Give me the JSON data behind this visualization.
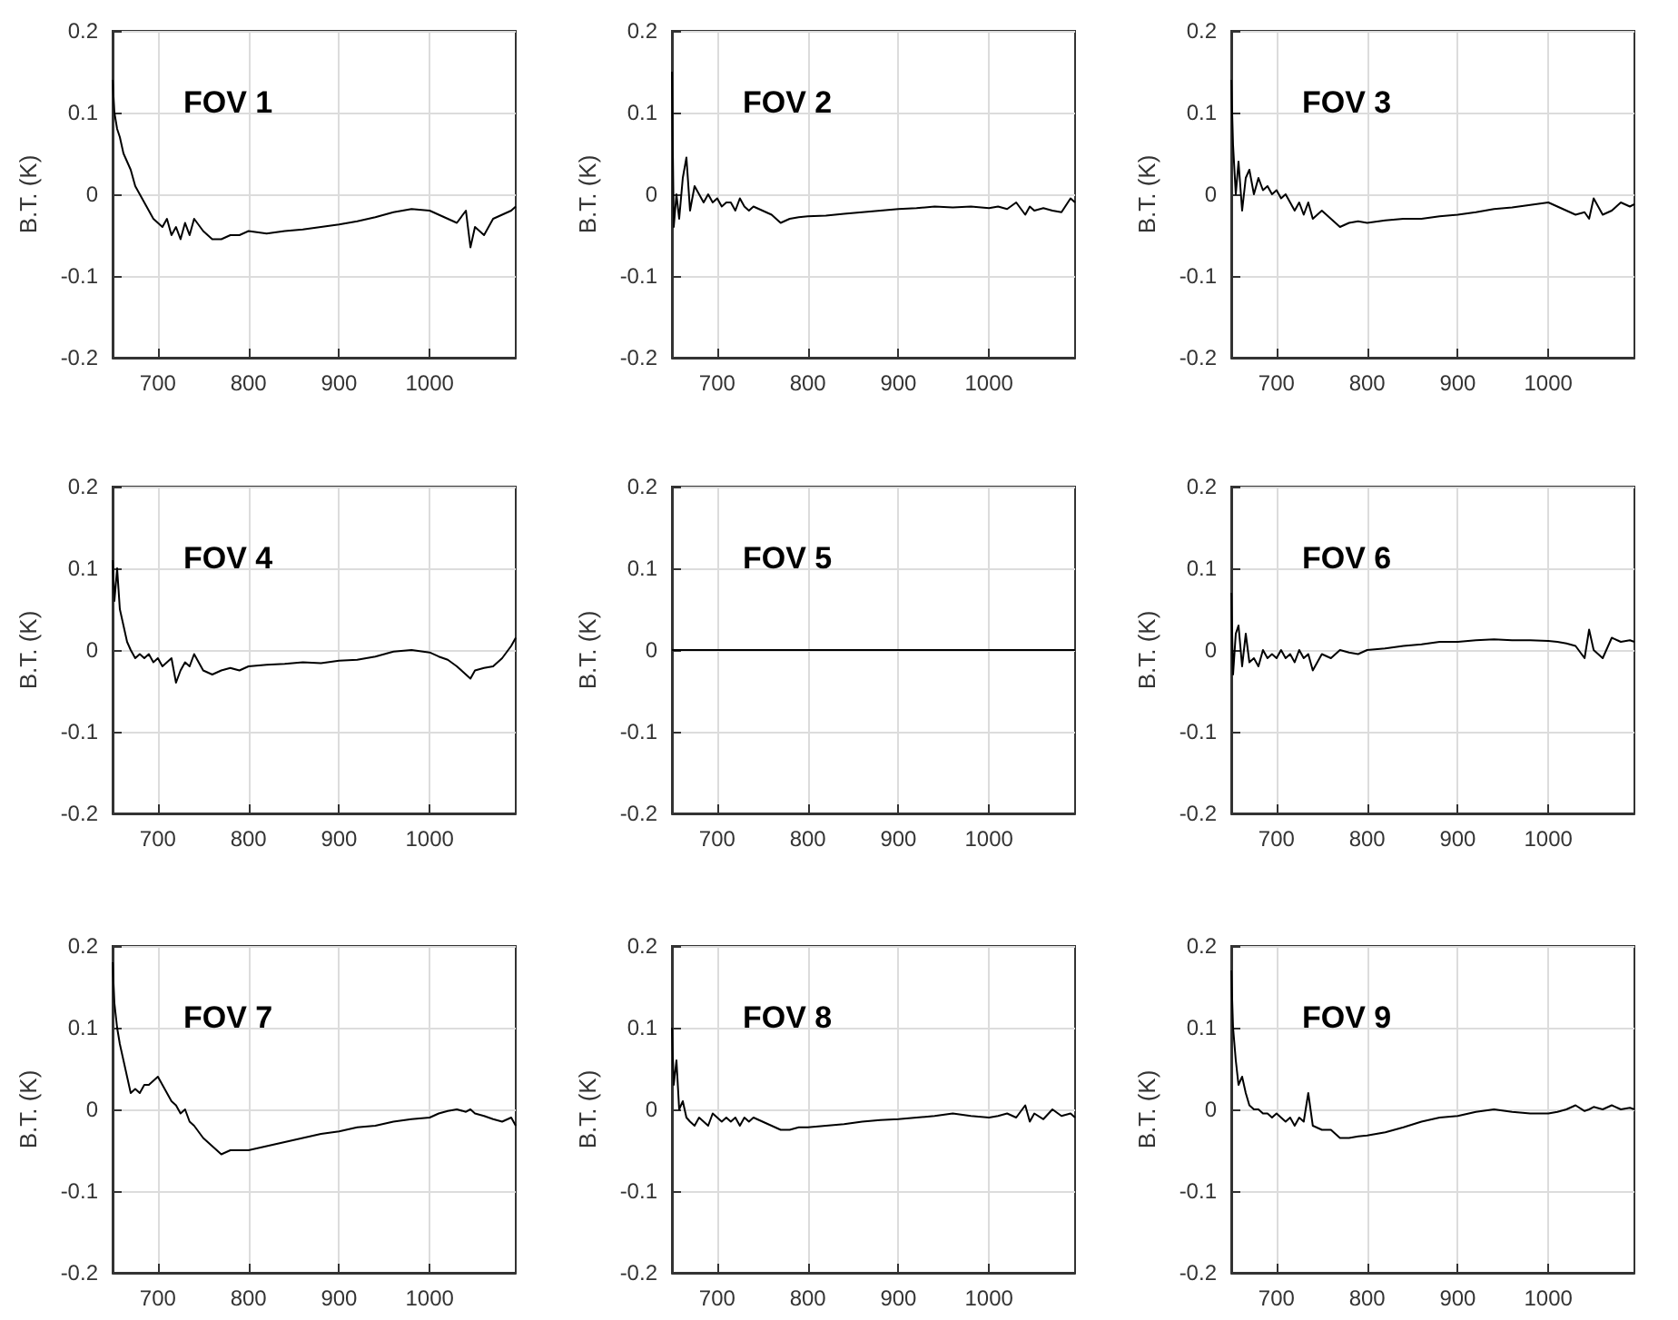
{
  "chart_data": [
    {
      "type": "line",
      "title": "FOV 1",
      "ylabel": "B.T. (K)",
      "color": "#000000",
      "xlim": [
        650,
        1095
      ],
      "ylim": [
        -0.2,
        0.2
      ],
      "xticks": [
        700,
        800,
        900,
        1000
      ],
      "yticks": [
        -0.2,
        -0.1,
        0,
        0.1,
        0.2
      ],
      "grid": true,
      "x": [
        650,
        652,
        655,
        658,
        662,
        666,
        670,
        675,
        680,
        685,
        690,
        695,
        700,
        705,
        710,
        715,
        720,
        725,
        730,
        735,
        740,
        750,
        760,
        770,
        780,
        790,
        800,
        820,
        840,
        860,
        880,
        900,
        920,
        940,
        960,
        980,
        1000,
        1010,
        1020,
        1030,
        1040,
        1045,
        1050,
        1060,
        1070,
        1080,
        1090,
        1095
      ],
      "values": [
        0.14,
        0.1,
        0.08,
        0.07,
        0.05,
        0.04,
        0.03,
        0.01,
        0.0,
        -0.01,
        -0.02,
        -0.03,
        -0.035,
        -0.04,
        -0.03,
        -0.05,
        -0.04,
        -0.055,
        -0.035,
        -0.05,
        -0.03,
        -0.045,
        -0.055,
        -0.055,
        -0.05,
        -0.05,
        -0.045,
        -0.048,
        -0.045,
        -0.043,
        -0.04,
        -0.037,
        -0.033,
        -0.028,
        -0.022,
        -0.018,
        -0.02,
        -0.025,
        -0.03,
        -0.035,
        -0.02,
        -0.065,
        -0.04,
        -0.05,
        -0.03,
        -0.025,
        -0.02,
        -0.015
      ]
    },
    {
      "type": "line",
      "title": "FOV 2",
      "ylabel": "B.T. (K)",
      "color": "#000000",
      "xlim": [
        650,
        1095
      ],
      "ylim": [
        -0.2,
        0.2
      ],
      "xticks": [
        700,
        800,
        900,
        1000
      ],
      "yticks": [
        -0.2,
        -0.1,
        0,
        0.1,
        0.2
      ],
      "grid": true,
      "x": [
        650,
        652,
        655,
        658,
        662,
        666,
        670,
        675,
        680,
        685,
        690,
        695,
        700,
        705,
        710,
        715,
        720,
        725,
        730,
        735,
        740,
        750,
        760,
        770,
        780,
        790,
        800,
        820,
        840,
        860,
        880,
        900,
        920,
        940,
        960,
        980,
        1000,
        1010,
        1020,
        1030,
        1040,
        1045,
        1050,
        1060,
        1070,
        1080,
        1090,
        1095
      ],
      "values": [
        0.15,
        -0.04,
        0.0,
        -0.03,
        0.02,
        0.045,
        -0.02,
        0.01,
        0.0,
        -0.01,
        0.0,
        -0.01,
        -0.005,
        -0.015,
        -0.01,
        -0.01,
        -0.02,
        -0.005,
        -0.015,
        -0.02,
        -0.015,
        -0.02,
        -0.025,
        -0.035,
        -0.03,
        -0.028,
        -0.027,
        -0.026,
        -0.024,
        -0.022,
        -0.02,
        -0.018,
        -0.017,
        -0.015,
        -0.016,
        -0.015,
        -0.017,
        -0.015,
        -0.018,
        -0.01,
        -0.025,
        -0.015,
        -0.02,
        -0.017,
        -0.02,
        -0.022,
        -0.005,
        -0.01
      ]
    },
    {
      "type": "line",
      "title": "FOV 3",
      "ylabel": "B.T. (K)",
      "color": "#000000",
      "xlim": [
        650,
        1095
      ],
      "ylim": [
        -0.2,
        0.2
      ],
      "xticks": [
        700,
        800,
        900,
        1000
      ],
      "yticks": [
        -0.2,
        -0.1,
        0,
        0.1,
        0.2
      ],
      "grid": true,
      "x": [
        650,
        652,
        655,
        658,
        662,
        666,
        670,
        675,
        680,
        685,
        690,
        695,
        700,
        705,
        710,
        715,
        720,
        725,
        730,
        735,
        740,
        750,
        760,
        770,
        780,
        790,
        800,
        820,
        840,
        860,
        880,
        900,
        920,
        940,
        960,
        980,
        1000,
        1010,
        1020,
        1030,
        1040,
        1045,
        1050,
        1060,
        1070,
        1080,
        1090,
        1095
      ],
      "values": [
        0.14,
        0.06,
        0.0,
        0.04,
        -0.02,
        0.02,
        0.03,
        0.0,
        0.02,
        0.005,
        0.01,
        0.0,
        0.005,
        -0.005,
        0.0,
        -0.01,
        -0.02,
        -0.01,
        -0.025,
        -0.01,
        -0.03,
        -0.02,
        -0.03,
        -0.04,
        -0.035,
        -0.033,
        -0.035,
        -0.032,
        -0.03,
        -0.03,
        -0.027,
        -0.025,
        -0.022,
        -0.018,
        -0.016,
        -0.013,
        -0.01,
        -0.015,
        -0.02,
        -0.025,
        -0.022,
        -0.03,
        -0.005,
        -0.025,
        -0.02,
        -0.01,
        -0.015,
        -0.012
      ]
    },
    {
      "type": "line",
      "title": "FOV 4",
      "ylabel": "B.T. (K)",
      "color": "#000000",
      "xlim": [
        650,
        1095
      ],
      "ylim": [
        -0.2,
        0.2
      ],
      "xticks": [
        700,
        800,
        900,
        1000
      ],
      "yticks": [
        -0.2,
        -0.1,
        0,
        0.1,
        0.2
      ],
      "grid": true,
      "x": [
        650,
        652,
        655,
        658,
        662,
        666,
        670,
        675,
        680,
        685,
        690,
        695,
        700,
        705,
        710,
        715,
        720,
        725,
        730,
        735,
        740,
        750,
        760,
        770,
        780,
        790,
        800,
        820,
        840,
        860,
        880,
        900,
        920,
        940,
        960,
        980,
        1000,
        1010,
        1020,
        1030,
        1040,
        1045,
        1050,
        1060,
        1070,
        1080,
        1090,
        1095
      ],
      "values": [
        0.11,
        0.06,
        0.1,
        0.05,
        0.03,
        0.01,
        0.0,
        -0.01,
        -0.005,
        -0.01,
        -0.005,
        -0.015,
        -0.01,
        -0.02,
        -0.015,
        -0.01,
        -0.04,
        -0.025,
        -0.015,
        -0.02,
        -0.005,
        -0.025,
        -0.03,
        -0.025,
        -0.022,
        -0.025,
        -0.02,
        -0.018,
        -0.017,
        -0.015,
        -0.016,
        -0.013,
        -0.012,
        -0.008,
        -0.002,
        0.0,
        -0.003,
        -0.008,
        -0.012,
        -0.02,
        -0.03,
        -0.035,
        -0.025,
        -0.022,
        -0.02,
        -0.01,
        0.005,
        0.015
      ]
    },
    {
      "type": "line",
      "title": "FOV 5",
      "ylabel": "B.T. (K)",
      "color": "#000000",
      "xlim": [
        650,
        1095
      ],
      "ylim": [
        -0.2,
        0.2
      ],
      "xticks": [
        700,
        800,
        900,
        1000
      ],
      "yticks": [
        -0.2,
        -0.1,
        0,
        0.1,
        0.2
      ],
      "grid": true,
      "x": [
        650,
        1095
      ],
      "values": [
        0,
        0
      ]
    },
    {
      "type": "line",
      "title": "FOV 6",
      "ylabel": "B.T. (K)",
      "color": "#000000",
      "xlim": [
        650,
        1095
      ],
      "ylim": [
        -0.2,
        0.2
      ],
      "xticks": [
        700,
        800,
        900,
        1000
      ],
      "yticks": [
        -0.2,
        -0.1,
        0,
        0.1,
        0.2
      ],
      "grid": true,
      "x": [
        650,
        652,
        655,
        658,
        662,
        666,
        670,
        675,
        680,
        685,
        690,
        695,
        700,
        705,
        710,
        715,
        720,
        725,
        730,
        735,
        740,
        750,
        760,
        770,
        780,
        790,
        800,
        820,
        840,
        860,
        880,
        900,
        920,
        940,
        960,
        980,
        1000,
        1010,
        1020,
        1030,
        1040,
        1045,
        1050,
        1060,
        1070,
        1080,
        1090,
        1095
      ],
      "values": [
        0.07,
        -0.03,
        0.02,
        0.03,
        -0.02,
        0.02,
        -0.015,
        -0.01,
        -0.02,
        0.0,
        -0.01,
        -0.005,
        -0.01,
        0.0,
        -0.01,
        -0.005,
        -0.015,
        0.0,
        -0.01,
        -0.005,
        -0.025,
        -0.005,
        -0.01,
        0.0,
        -0.003,
        -0.005,
        0.0,
        0.002,
        0.005,
        0.007,
        0.01,
        0.01,
        0.012,
        0.013,
        0.012,
        0.012,
        0.011,
        0.01,
        0.008,
        0.005,
        -0.01,
        0.025,
        0.0,
        -0.01,
        0.015,
        0.01,
        0.012,
        0.01
      ]
    },
    {
      "type": "line",
      "title": "FOV 7",
      "ylabel": "B.T. (K)",
      "color": "#000000",
      "xlim": [
        650,
        1095
      ],
      "ylim": [
        -0.2,
        0.2
      ],
      "xticks": [
        700,
        800,
        900,
        1000
      ],
      "yticks": [
        -0.2,
        -0.1,
        0,
        0.1,
        0.2
      ],
      "grid": true,
      "x": [
        650,
        652,
        655,
        658,
        662,
        666,
        670,
        675,
        680,
        685,
        690,
        695,
        700,
        705,
        710,
        715,
        720,
        725,
        730,
        735,
        740,
        750,
        760,
        770,
        780,
        790,
        800,
        820,
        840,
        860,
        880,
        900,
        920,
        940,
        960,
        980,
        1000,
        1010,
        1020,
        1030,
        1040,
        1045,
        1050,
        1060,
        1070,
        1080,
        1090,
        1095
      ],
      "values": [
        0.18,
        0.13,
        0.1,
        0.08,
        0.06,
        0.04,
        0.02,
        0.025,
        0.02,
        0.03,
        0.03,
        0.035,
        0.04,
        0.03,
        0.02,
        0.01,
        0.005,
        -0.005,
        0.0,
        -0.015,
        -0.02,
        -0.035,
        -0.045,
        -0.055,
        -0.05,
        -0.05,
        -0.05,
        -0.045,
        -0.04,
        -0.035,
        -0.03,
        -0.027,
        -0.022,
        -0.02,
        -0.015,
        -0.012,
        -0.01,
        -0.005,
        -0.002,
        0.0,
        -0.003,
        0.0,
        -0.005,
        -0.008,
        -0.012,
        -0.015,
        -0.01,
        -0.02
      ]
    },
    {
      "type": "line",
      "title": "FOV 8",
      "ylabel": "B.T. (K)",
      "color": "#000000",
      "xlim": [
        650,
        1095
      ],
      "ylim": [
        -0.2,
        0.2
      ],
      "xticks": [
        700,
        800,
        900,
        1000
      ],
      "yticks": [
        -0.2,
        -0.1,
        0,
        0.1,
        0.2
      ],
      "grid": true,
      "x": [
        650,
        652,
        655,
        658,
        662,
        666,
        670,
        675,
        680,
        685,
        690,
        695,
        700,
        705,
        710,
        715,
        720,
        725,
        730,
        735,
        740,
        750,
        760,
        770,
        780,
        790,
        800,
        820,
        840,
        860,
        880,
        900,
        920,
        940,
        960,
        980,
        1000,
        1010,
        1020,
        1030,
        1040,
        1045,
        1050,
        1060,
        1070,
        1080,
        1090,
        1095
      ],
      "values": [
        0.1,
        0.03,
        0.06,
        0.0,
        0.01,
        -0.01,
        -0.015,
        -0.02,
        -0.01,
        -0.015,
        -0.02,
        -0.005,
        -0.01,
        -0.015,
        -0.01,
        -0.015,
        -0.01,
        -0.02,
        -0.01,
        -0.015,
        -0.01,
        -0.015,
        -0.02,
        -0.025,
        -0.025,
        -0.022,
        -0.022,
        -0.02,
        -0.018,
        -0.015,
        -0.013,
        -0.012,
        -0.01,
        -0.008,
        -0.005,
        -0.008,
        -0.01,
        -0.008,
        -0.005,
        -0.01,
        0.005,
        -0.015,
        -0.005,
        -0.012,
        0.0,
        -0.008,
        -0.005,
        -0.01
      ]
    },
    {
      "type": "line",
      "title": "FOV 9",
      "ylabel": "B.T. (K)",
      "color": "#000000",
      "xlim": [
        650,
        1095
      ],
      "ylim": [
        -0.2,
        0.2
      ],
      "xticks": [
        700,
        800,
        900,
        1000
      ],
      "yticks": [
        -0.2,
        -0.1,
        0,
        0.1,
        0.2
      ],
      "grid": true,
      "x": [
        650,
        652,
        655,
        658,
        662,
        666,
        670,
        675,
        680,
        685,
        690,
        695,
        700,
        705,
        710,
        715,
        720,
        725,
        730,
        735,
        740,
        750,
        760,
        770,
        780,
        790,
        800,
        820,
        840,
        860,
        880,
        900,
        920,
        940,
        960,
        980,
        1000,
        1010,
        1020,
        1030,
        1040,
        1045,
        1050,
        1060,
        1070,
        1080,
        1090,
        1095
      ],
      "values": [
        0.17,
        0.1,
        0.06,
        0.03,
        0.04,
        0.02,
        0.005,
        0.0,
        0.0,
        -0.005,
        -0.005,
        -0.01,
        -0.005,
        -0.01,
        -0.015,
        -0.01,
        -0.02,
        -0.01,
        -0.015,
        0.02,
        -0.02,
        -0.025,
        -0.025,
        -0.035,
        -0.035,
        -0.033,
        -0.032,
        -0.028,
        -0.022,
        -0.015,
        -0.01,
        -0.008,
        -0.003,
        0.0,
        -0.003,
        -0.005,
        -0.005,
        -0.003,
        0.0,
        0.005,
        -0.002,
        0.0,
        0.003,
        0.0,
        0.005,
        0.0,
        0.002,
        0.0
      ]
    }
  ]
}
